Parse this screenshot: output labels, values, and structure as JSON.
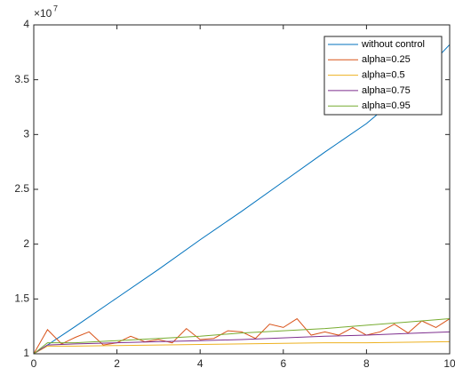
{
  "chart_data": {
    "type": "line",
    "y_multiplier": {
      "base": "×10",
      "exponent": "7"
    },
    "xlim": [
      0,
      10
    ],
    "xticks": [
      0,
      2,
      4,
      6,
      8,
      10
    ],
    "ylim": [
      1,
      4
    ],
    "yticks": [
      1,
      1.5,
      2,
      2.5,
      3,
      3.5,
      4
    ],
    "grid": false,
    "legend_position": "northeast",
    "series": [
      {
        "name": "without control",
        "color": "#0072BD",
        "x": [
          0,
          0.33,
          1,
          2,
          3,
          4,
          5,
          6,
          7,
          8,
          9,
          10
        ],
        "values": [
          1.0,
          1.08,
          1.25,
          1.51,
          1.77,
          2.04,
          2.3,
          2.57,
          2.84,
          3.1,
          3.42,
          3.82
        ]
      },
      {
        "name": "alpha=0.25",
        "color": "#D95319",
        "x": [
          0,
          0.33,
          0.67,
          1,
          1.33,
          1.67,
          2,
          2.33,
          2.67,
          3,
          3.33,
          3.67,
          4,
          4.33,
          4.67,
          5,
          5.33,
          5.67,
          6,
          6.33,
          6.67,
          7,
          7.33,
          7.67,
          8,
          8.33,
          8.67,
          9,
          9.33,
          9.67,
          10
        ],
        "values": [
          1.0,
          1.22,
          1.09,
          1.15,
          1.2,
          1.08,
          1.1,
          1.16,
          1.11,
          1.13,
          1.1,
          1.23,
          1.13,
          1.14,
          1.21,
          1.2,
          1.14,
          1.27,
          1.24,
          1.32,
          1.17,
          1.2,
          1.17,
          1.24,
          1.17,
          1.2,
          1.27,
          1.19,
          1.3,
          1.24,
          1.32
        ]
      },
      {
        "name": "alpha=0.5",
        "color": "#EDB120",
        "x": [
          0,
          0.33,
          1,
          2,
          3,
          4,
          5,
          6,
          7,
          8,
          9,
          10
        ],
        "values": [
          1.0,
          1.07,
          1.07,
          1.075,
          1.08,
          1.085,
          1.09,
          1.095,
          1.1,
          1.1,
          1.105,
          1.11
        ]
      },
      {
        "name": "alpha=0.75",
        "color": "#7E2F8E",
        "x": [
          0,
          0.33,
          1,
          2,
          3,
          4,
          5,
          6,
          7,
          8,
          9,
          10
        ],
        "values": [
          1.0,
          1.08,
          1.09,
          1.1,
          1.11,
          1.12,
          1.13,
          1.145,
          1.16,
          1.17,
          1.185,
          1.2
        ]
      },
      {
        "name": "alpha=0.95",
        "color": "#77AC30",
        "x": [
          0,
          0.33,
          1,
          2,
          3,
          4,
          5,
          6,
          7,
          8,
          9,
          10
        ],
        "values": [
          1.0,
          1.1,
          1.1,
          1.12,
          1.14,
          1.16,
          1.19,
          1.21,
          1.23,
          1.26,
          1.29,
          1.32
        ]
      }
    ]
  }
}
